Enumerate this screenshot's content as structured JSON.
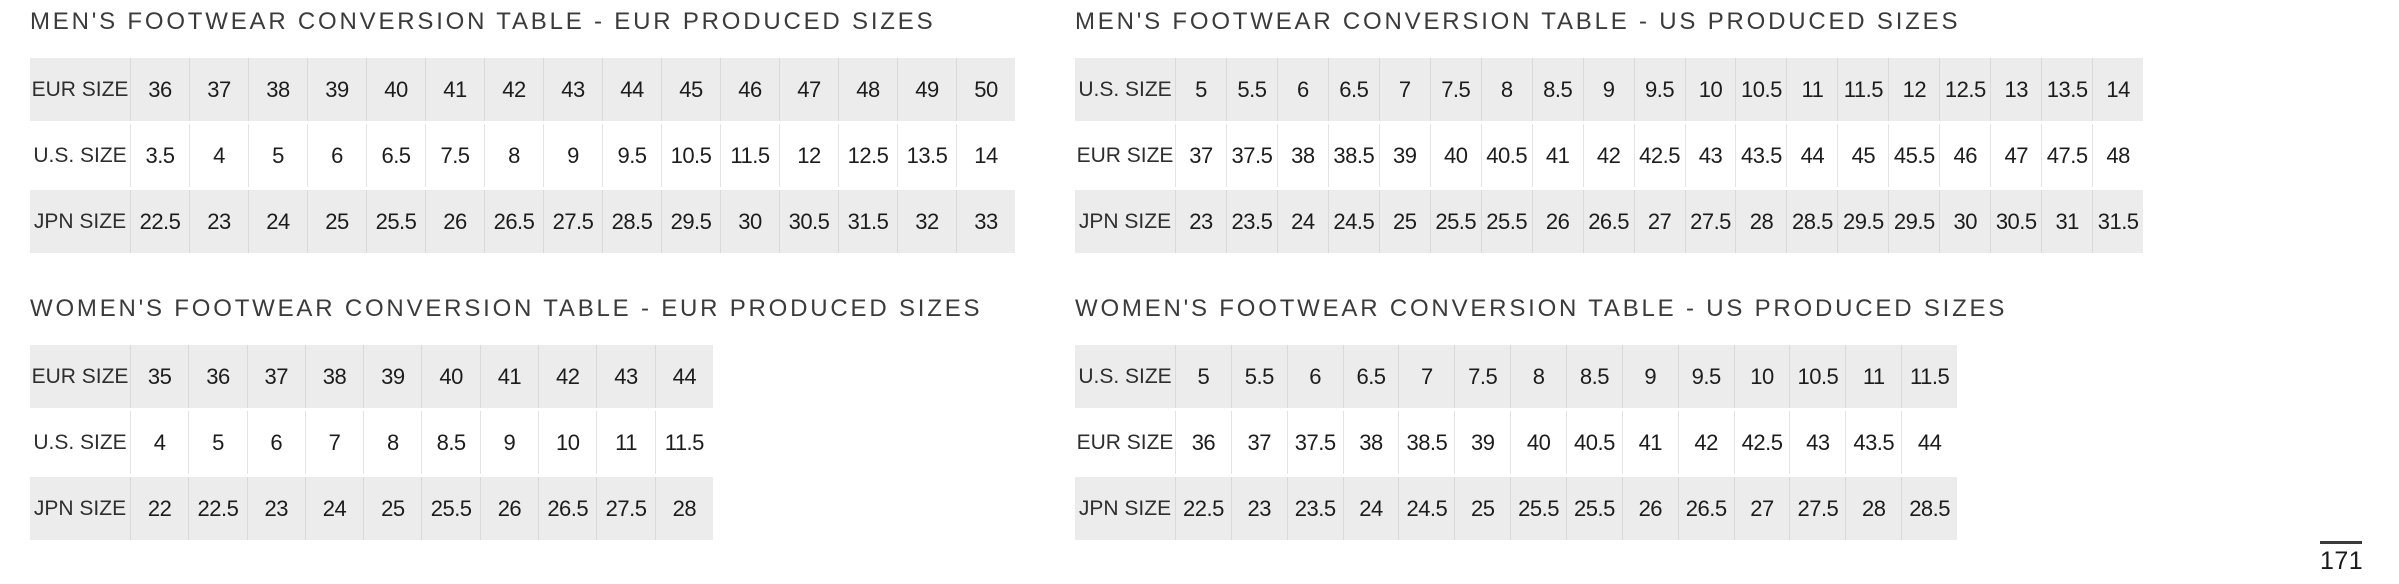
{
  "page": {
    "number": "171"
  },
  "colors": {
    "background": "#ffffff",
    "shaded_row": "#ececec",
    "cell_divider": "#d9d9d9",
    "text": "#1c1c1c",
    "title_text": "#3b3b3b"
  },
  "tables": [
    {
      "title": "MEN'S FOOTWEAR CONVERSION TABLE - EUR PRODUCED SIZES",
      "rows": [
        {
          "label": "EUR SIZE",
          "values": [
            "36",
            "37",
            "38",
            "39",
            "40",
            "41",
            "42",
            "43",
            "44",
            "45",
            "46",
            "47",
            "48",
            "49",
            "50"
          ]
        },
        {
          "label": "U.S. SIZE",
          "values": [
            "3.5",
            "4",
            "5",
            "6",
            "6.5",
            "7.5",
            "8",
            "9",
            "9.5",
            "10.5",
            "11.5",
            "12",
            "12.5",
            "13.5",
            "14"
          ]
        },
        {
          "label": "JPN SIZE",
          "values": [
            "22.5",
            "23",
            "24",
            "25",
            "25.5",
            "26",
            "26.5",
            "27.5",
            "28.5",
            "29.5",
            "30",
            "30.5",
            "31.5",
            "32",
            "33"
          ]
        }
      ]
    },
    {
      "title": "MEN'S FOOTWEAR CONVERSION TABLE - US PRODUCED SIZES",
      "rows": [
        {
          "label": "U.S. SIZE",
          "values": [
            "5",
            "5.5",
            "6",
            "6.5",
            "7",
            "7.5",
            "8",
            "8.5",
            "9",
            "9.5",
            "10",
            "10.5",
            "11",
            "11.5",
            "12",
            "12.5",
            "13",
            "13.5",
            "14"
          ]
        },
        {
          "label": "EUR SIZE",
          "values": [
            "37",
            "37.5",
            "38",
            "38.5",
            "39",
            "40",
            "40.5",
            "41",
            "42",
            "42.5",
            "43",
            "43.5",
            "44",
            "45",
            "45.5",
            "46",
            "47",
            "47.5",
            "48"
          ]
        },
        {
          "label": "JPN SIZE",
          "values": [
            "23",
            "23.5",
            "24",
            "24.5",
            "25",
            "25.5",
            "25.5",
            "26",
            "26.5",
            "27",
            "27.5",
            "28",
            "28.5",
            "29.5",
            "29.5",
            "30",
            "30.5",
            "31",
            "31.5"
          ]
        }
      ]
    },
    {
      "title": "WOMEN'S FOOTWEAR CONVERSION TABLE - EUR PRODUCED SIZES",
      "rows": [
        {
          "label": "EUR SIZE",
          "values": [
            "35",
            "36",
            "37",
            "38",
            "39",
            "40",
            "41",
            "42",
            "43",
            "44"
          ]
        },
        {
          "label": "U.S. SIZE",
          "values": [
            "4",
            "5",
            "6",
            "7",
            "8",
            "8.5",
            "9",
            "10",
            "11",
            "11.5"
          ]
        },
        {
          "label": "JPN SIZE",
          "values": [
            "22",
            "22.5",
            "23",
            "24",
            "25",
            "25.5",
            "26",
            "26.5",
            "27.5",
            "28"
          ]
        }
      ]
    },
    {
      "title": "WOMEN'S FOOTWEAR CONVERSION TABLE - US PRODUCED SIZES",
      "rows": [
        {
          "label": "U.S. SIZE",
          "values": [
            "5",
            "5.5",
            "6",
            "6.5",
            "7",
            "7.5",
            "8",
            "8.5",
            "9",
            "9.5",
            "10",
            "10.5",
            "11",
            "11.5"
          ]
        },
        {
          "label": "EUR SIZE",
          "values": [
            "36",
            "37",
            "37.5",
            "38",
            "38.5",
            "39",
            "40",
            "40.5",
            "41",
            "42",
            "42.5",
            "43",
            "43.5",
            "44"
          ]
        },
        {
          "label": "JPN SIZE",
          "values": [
            "22.5",
            "23",
            "23.5",
            "24",
            "24.5",
            "25",
            "25.5",
            "25.5",
            "26",
            "26.5",
            "27",
            "27.5",
            "28",
            "28.5"
          ]
        }
      ]
    }
  ]
}
